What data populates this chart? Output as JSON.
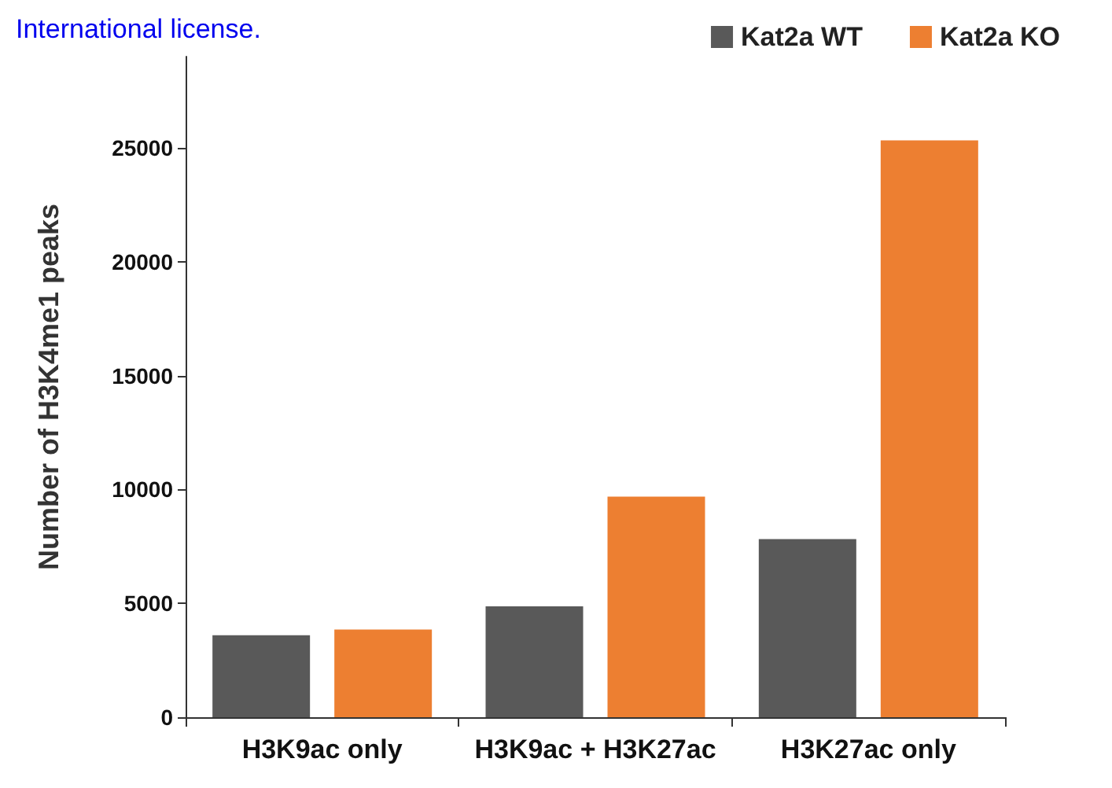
{
  "chart_data": {
    "type": "bar",
    "ylabel": "Number of H3K4me1 peaks",
    "categories": [
      "H3K9ac only",
      "H3K9ac + H3K27ac",
      "H3K27ac only"
    ],
    "series": [
      {
        "name": "Kat2a WT",
        "color": "#595959",
        "values": [
          3600,
          4870,
          7820
        ]
      },
      {
        "name": "Kat2a KO",
        "color": "#ed7f31",
        "values": [
          3850,
          9680,
          25320
        ]
      }
    ],
    "ylim": [
      0,
      29000
    ],
    "yticks": [
      0,
      5000,
      10000,
      15000,
      20000,
      25000
    ],
    "grid": false,
    "legend": "top right",
    "annotations": [
      "International license."
    ]
  }
}
